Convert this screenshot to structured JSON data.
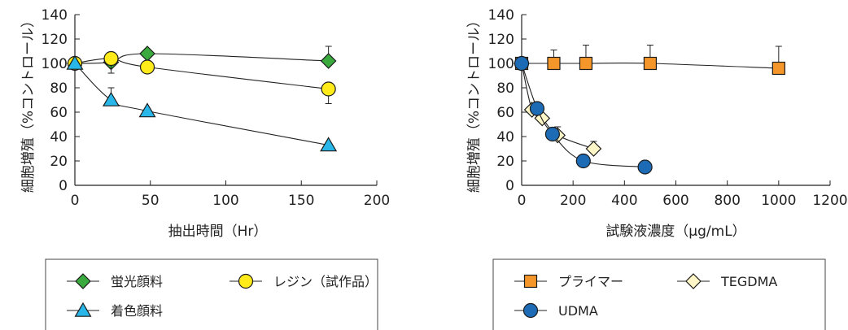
{
  "chart_data": [
    {
      "type": "line",
      "xlabel": "抽出時間（Hr）",
      "ylabel": "細胞増殖（%コントロール）",
      "xlim": [
        0,
        200
      ],
      "ylim": [
        0,
        140
      ],
      "xticks": [
        "0",
        "50",
        "100",
        "150",
        "200"
      ],
      "yticks": [
        "0",
        "20",
        "40",
        "60",
        "80",
        "100",
        "120",
        "140"
      ],
      "grid": false,
      "legend_position": "bottom",
      "series": [
        {
          "name": "蛍光顔料",
          "marker": "diamond",
          "color": "#3aaa3e",
          "x": [
            0,
            24,
            48,
            168
          ],
          "values": [
            100,
            101,
            108,
            102
          ],
          "error_up": [
            0,
            0,
            0,
            12
          ]
        },
        {
          "name": "レジン（試作品）",
          "marker": "circle",
          "color": "#ffeb1a",
          "x": [
            0,
            24,
            48,
            168
          ],
          "values": [
            100,
            104,
            97,
            79
          ],
          "error_up": [
            0,
            0,
            0,
            0
          ],
          "error_down": [
            0,
            12,
            0,
            12
          ]
        },
        {
          "name": "着色顔料",
          "marker": "triangle",
          "color": "#29b6e8",
          "x": [
            0,
            24,
            48,
            168
          ],
          "values": [
            100,
            70,
            61,
            33
          ],
          "error_up": [
            0,
            10,
            0,
            0
          ]
        }
      ],
      "legend_rows": [
        [
          "蛍光顔料",
          "レジン（試作品）"
        ],
        [
          "着色顔料"
        ]
      ]
    },
    {
      "type": "line",
      "xlabel": "試験液濃度（µg/mL）",
      "ylabel": "細胞増殖（%コントロール）",
      "xlim": [
        0,
        1200
      ],
      "ylim": [
        0,
        140
      ],
      "xticks": [
        "0",
        "200",
        "400",
        "600",
        "800",
        "1000",
        "1200"
      ],
      "yticks": [
        "0",
        "20",
        "40",
        "60",
        "80",
        "100",
        "120",
        "140"
      ],
      "grid": false,
      "legend_position": "bottom",
      "series": [
        {
          "name": "プライマー",
          "marker": "square",
          "color": "#f5962a",
          "x": [
            0,
            125,
            250,
            500,
            1000
          ],
          "values": [
            100,
            100,
            100,
            100,
            96
          ],
          "error_up": [
            0,
            11,
            15,
            15,
            18
          ]
        },
        {
          "name": "TEGDMA",
          "marker": "diamond",
          "color": "#fff6c8",
          "x": [
            0,
            40,
            80,
            140,
            280
          ],
          "values": [
            100,
            62,
            55,
            41,
            30
          ],
          "error_up": [
            0,
            0,
            0,
            7,
            6
          ]
        },
        {
          "name": "UDMA",
          "marker": "circle",
          "color": "#1d6bb5",
          "x": [
            0,
            60,
            120,
            240,
            480
          ],
          "values": [
            100,
            63,
            42,
            20,
            15
          ],
          "error_up": [
            0,
            0,
            0,
            0,
            0
          ]
        }
      ],
      "legend_rows": [
        [
          "プライマー",
          "TEGDMA"
        ],
        [
          "UDMA"
        ]
      ]
    }
  ]
}
